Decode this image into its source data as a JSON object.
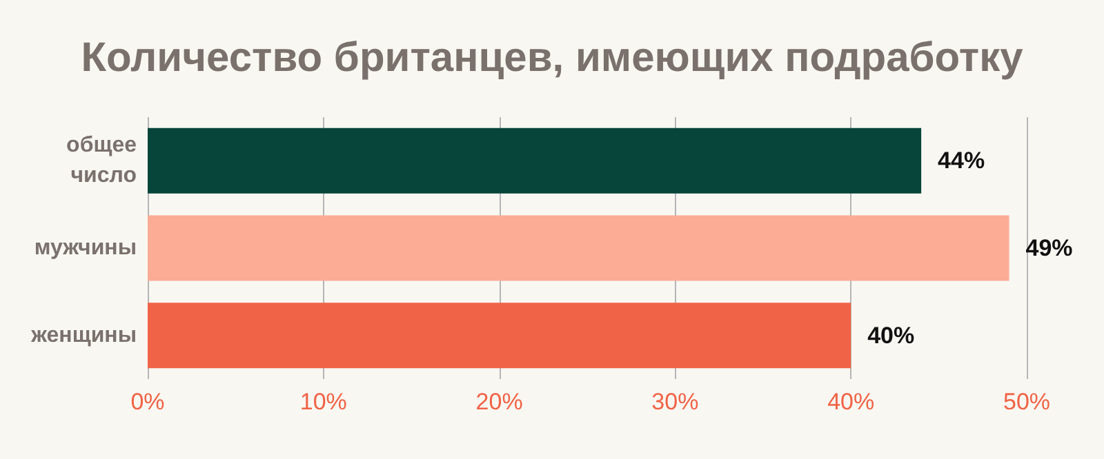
{
  "chart_data": {
    "type": "bar",
    "orientation": "horizontal",
    "title": "Количество британцев, имеющих подработку",
    "categories": [
      "общее\nчисло",
      "мужчины",
      "женщины"
    ],
    "values": [
      44,
      49,
      40
    ],
    "colors": [
      "#07443a",
      "#fcab95",
      "#f06346"
    ],
    "value_labels": [
      "44%",
      "49%",
      "40%"
    ],
    "xlim": [
      0,
      50
    ],
    "xticks": [
      {
        "value": 0,
        "label": "0%"
      },
      {
        "value": 10,
        "label": "10%"
      },
      {
        "value": 20,
        "label": "20%"
      },
      {
        "value": 30,
        "label": "30%"
      },
      {
        "value": 40,
        "label": "40%"
      },
      {
        "value": 50,
        "label": "50%"
      }
    ],
    "grid": "x"
  }
}
